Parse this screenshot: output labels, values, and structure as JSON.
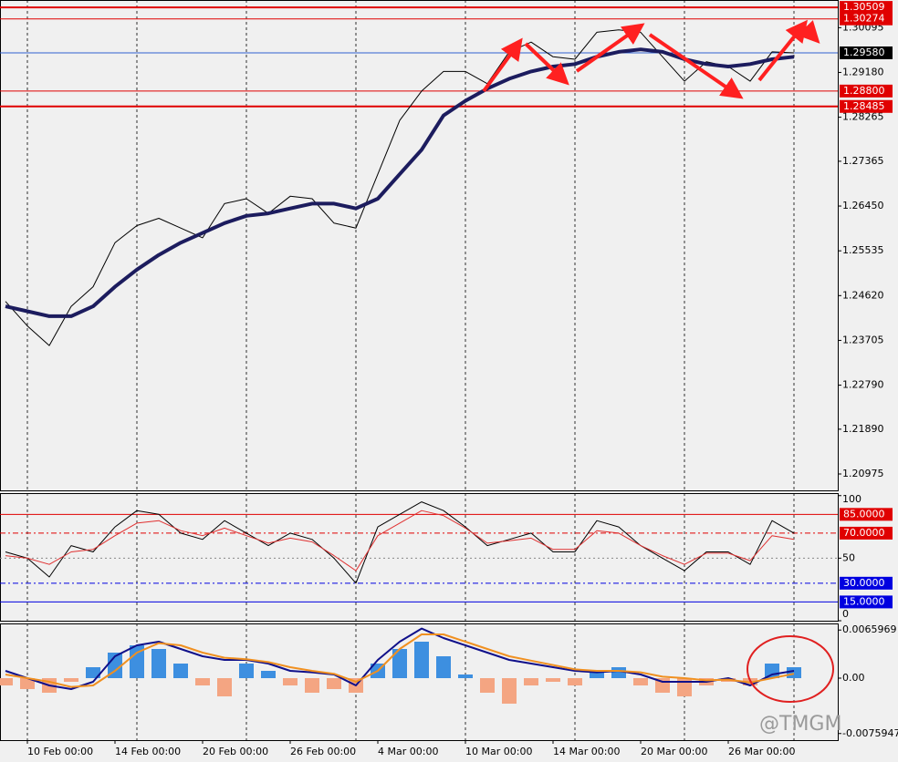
{
  "chart_data": [
    {
      "type": "line",
      "name": "price",
      "xlim": [
        -0.25,
        38
      ],
      "xgrid": [
        1,
        6,
        11,
        16,
        21,
        26,
        31,
        36
      ],
      "xticks": [
        {
          "value": 1,
          "label": "10 Feb 00:00"
        },
        {
          "value": 5,
          "label": "14 Feb 00:00"
        },
        {
          "value": 9,
          "label": "20 Feb 00:00"
        },
        {
          "value": 13,
          "label": "26 Feb 00:00"
        },
        {
          "value": 17,
          "label": "4 Mar 00:00"
        },
        {
          "value": 21,
          "label": "10 Mar 00:00"
        },
        {
          "value": 25,
          "label": "14 Mar 00:00"
        },
        {
          "value": 29,
          "label": "20 Mar 00:00"
        },
        {
          "value": 33,
          "label": "26 Mar 00:00"
        }
      ],
      "ylim": [
        1.2064,
        1.3066
      ],
      "yticks": [
        1.30095,
        {
          "value": 1.2918,
          "label": "1.29180"
        },
        1.28265,
        1.27365,
        {
          "value": 1.2645,
          "label": "1.26450"
        },
        1.25535,
        {
          "value": 1.2462,
          "label": "1.24620"
        },
        1.23705,
        {
          "value": 1.2279,
          "label": "1.22790"
        },
        {
          "value": 1.2189,
          "label": "1.21890"
        },
        1.20975
      ],
      "levels": [
        {
          "value": 1.30509,
          "label": "1.30509",
          "color": "#e00000",
          "label_color": "#e00000",
          "width": 2
        },
        {
          "value": 1.30274,
          "label": "1.30274",
          "color": "#e00000",
          "label_color": "#e00000",
          "width": 1
        },
        {
          "value": 1.2958,
          "label": "1.29580",
          "color": "#3060d0",
          "label_color": "#000000",
          "width": 1
        },
        {
          "value": 1.288,
          "label": "1.28800",
          "color": "#e00000",
          "label_color": "#e00000",
          "width": 1
        },
        {
          "value": 1.28485,
          "label": "1.28485",
          "color": "#e00000",
          "label_color": "#e00000",
          "width": 2
        }
      ],
      "series": [
        {
          "color": "#000000",
          "width": 1,
          "values": [
            1.245,
            1.24,
            1.236,
            1.244,
            1.248,
            1.257,
            1.2605,
            1.262,
            1.26,
            1.258,
            1.265,
            1.266,
            1.263,
            1.2665,
            1.266,
            1.261,
            1.26,
            1.271,
            1.282,
            1.288,
            1.292,
            1.292,
            1.2895,
            1.296,
            1.298,
            1.295,
            1.2945,
            1.3,
            1.3005,
            1.3,
            1.295,
            1.29,
            1.294,
            1.293,
            1.29,
            1.296,
            1.2958
          ]
        },
        {
          "color": "#1c1c5e",
          "width": 4,
          "values": [
            1.244,
            1.243,
            1.242,
            1.242,
            1.244,
            1.248,
            1.2515,
            1.2545,
            1.257,
            1.259,
            1.261,
            1.2625,
            1.263,
            1.264,
            1.265,
            1.265,
            1.264,
            1.266,
            1.271,
            1.276,
            1.283,
            1.286,
            1.2885,
            1.2905,
            1.292,
            1.293,
            1.2935,
            1.295,
            1.296,
            1.2965,
            1.296,
            1.2945,
            1.2935,
            1.293,
            1.2935,
            1.2945,
            1.295
          ]
        }
      ]
    },
    {
      "type": "line",
      "name": "rsi",
      "ylim": [
        0,
        102
      ],
      "yticks": [
        100,
        50,
        0
      ],
      "levels": [
        {
          "value": 85,
          "label": "85.0000",
          "color": "#e00000",
          "dash": ""
        },
        {
          "value": 70,
          "label": "70.0000",
          "color": "#e00000",
          "dash": "6 3 2 3"
        },
        {
          "value": 30,
          "label": "30.0000",
          "color": "#0000e0",
          "dash": "6 3 2 3"
        },
        {
          "value": 15,
          "label": "15.0000",
          "color": "#0000e0",
          "dash": ""
        }
      ],
      "series": [
        {
          "color": "#000000",
          "width": 1,
          "values": [
            55,
            50,
            35,
            60,
            55,
            75,
            88,
            85,
            70,
            65,
            80,
            70,
            60,
            70,
            65,
            50,
            30,
            75,
            85,
            95,
            88,
            75,
            60,
            65,
            70,
            55,
            55,
            80,
            75,
            60,
            50,
            40,
            55,
            55,
            45,
            80,
            70
          ]
        },
        {
          "color": "#e03030",
          "width": 1,
          "values": [
            52,
            50,
            45,
            55,
            57,
            68,
            78,
            80,
            72,
            68,
            74,
            68,
            62,
            66,
            63,
            52,
            40,
            68,
            78,
            88,
            84,
            74,
            62,
            64,
            66,
            57,
            57,
            72,
            70,
            60,
            52,
            45,
            54,
            54,
            48,
            68,
            65
          ]
        }
      ]
    },
    {
      "type": "bar",
      "name": "macd",
      "ylim": [
        -0.0085,
        0.0075
      ],
      "yticks": [
        0.0065969,
        {
          "value": 0,
          "label": "0.00"
        },
        -0.0075947
      ],
      "positive_color": "#3d8fe0",
      "negative_color": "#f4a582",
      "values": [
        -0.001,
        -0.0015,
        -0.002,
        -0.0005,
        0.0015,
        0.0035,
        0.0045,
        0.004,
        0.002,
        -0.001,
        -0.0025,
        0.002,
        0.001,
        -0.001,
        -0.002,
        -0.0015,
        -0.002,
        0.002,
        0.004,
        0.005,
        0.003,
        0.0005,
        -0.002,
        -0.0035,
        -0.001,
        -0.0005,
        -0.001,
        0.001,
        0.0015,
        -0.001,
        -0.002,
        -0.0025,
        -0.001,
        -0.0005,
        -0.001,
        0.002,
        0.0015
      ],
      "series": [
        {
          "color": "#10108a",
          "width": 2,
          "values": [
            0.001,
            0,
            -0.001,
            -0.0015,
            -0.0005,
            0.003,
            0.0045,
            0.005,
            0.004,
            0.003,
            0.0025,
            0.0025,
            0.002,
            0.001,
            0.0008,
            0.0005,
            -0.001,
            0.0025,
            0.005,
            0.0068,
            0.0055,
            0.0045,
            0.0035,
            0.0025,
            0.002,
            0.0015,
            0.001,
            0.0008,
            0.001,
            0.0005,
            -0.0005,
            -0.0005,
            -0.0005,
            0,
            -0.001,
            0.0005,
            0.001
          ]
        },
        {
          "color": "#f09020",
          "width": 2,
          "values": [
            0.0005,
            0,
            -0.0005,
            -0.0012,
            -0.001,
            0.001,
            0.0035,
            0.0048,
            0.0045,
            0.0035,
            0.0028,
            0.0026,
            0.0022,
            0.0015,
            0.001,
            0.0006,
            -0.0005,
            0.001,
            0.004,
            0.006,
            0.006,
            0.005,
            0.004,
            0.003,
            0.0024,
            0.0018,
            0.0012,
            0.001,
            0.001,
            0.0008,
            0.0002,
            0,
            -0.0003,
            -0.0002,
            -0.0006,
            0,
            0.0006
          ]
        }
      ]
    }
  ],
  "watermark": "@TMGM"
}
